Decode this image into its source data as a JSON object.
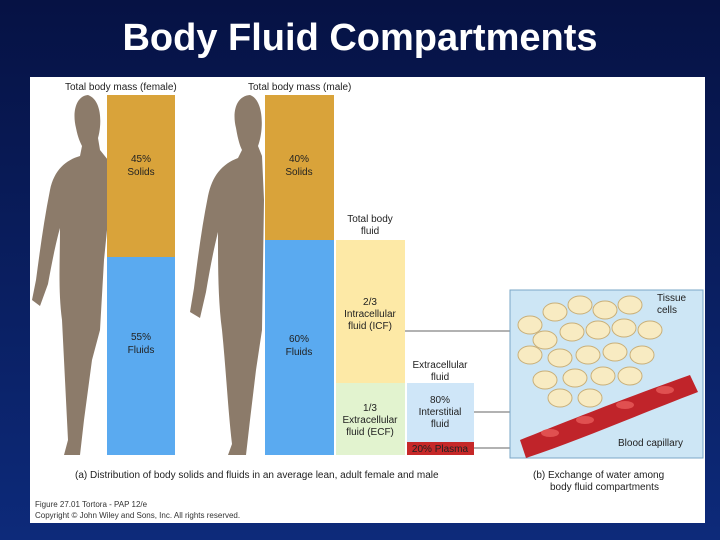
{
  "title": "Body Fluid Compartments",
  "figure": {
    "female_label": "Total body mass (female)",
    "male_label": "Total body mass (male)",
    "female_solids": [
      "45%",
      "Solids"
    ],
    "female_fluids": [
      "55%",
      "Fluids"
    ],
    "male_solids": [
      "40%",
      "Solids"
    ],
    "male_fluids": [
      "60%",
      "Fluids"
    ],
    "total_body_fluid": [
      "Total body",
      "fluid"
    ],
    "icf": [
      "2/3",
      "Intracellular",
      "fluid (ICF)"
    ],
    "ecf": [
      "1/3",
      "Extracellular",
      "fluid (ECF)"
    ],
    "extracellular_label": [
      "Extracellular",
      "fluid"
    ],
    "interstitial": [
      "80%",
      "Interstitial",
      "fluid"
    ],
    "plasma": "20% Plasma",
    "tissue_cells": [
      "Tissue",
      "cells"
    ],
    "blood_capillary": "Blood capillary",
    "caption_a": "(a) Distribution of body solids and fluids in an average lean, adult female and male",
    "caption_b": [
      "(b) Exchange of water among",
      "body fluid compartments"
    ],
    "credit": [
      "Figure 27.01 Tortora - PAP 12/e",
      "Copyright © John Wiley and Sons, Inc. All rights reserved."
    ]
  }
}
